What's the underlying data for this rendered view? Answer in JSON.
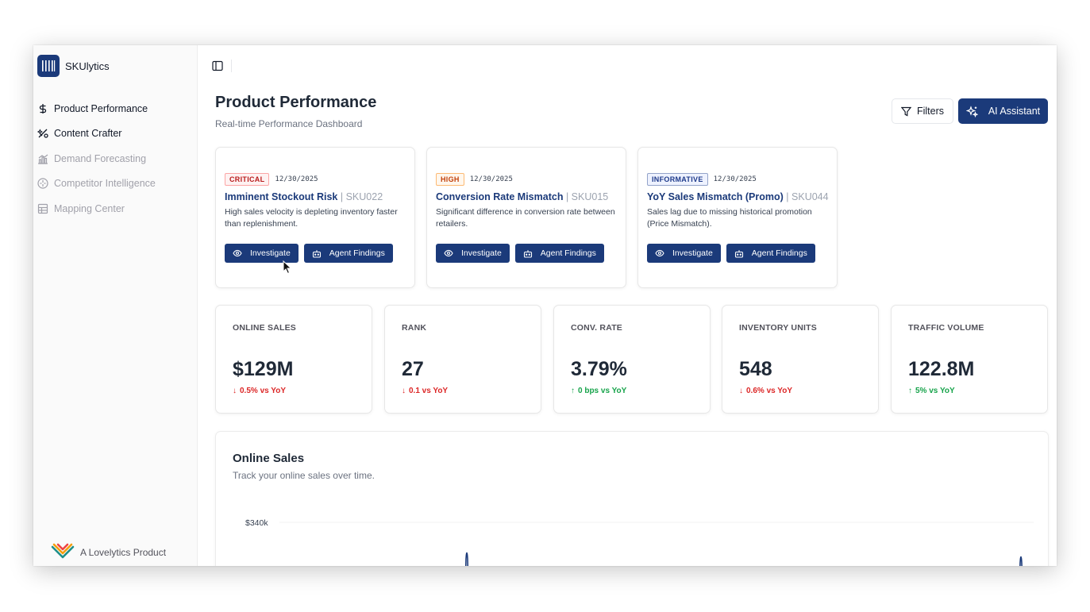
{
  "brand": {
    "name": "SKUlytics"
  },
  "sidebar": {
    "items": [
      {
        "label": "Product Performance",
        "icon": "dollar-icon",
        "state": "active"
      },
      {
        "label": "Content Crafter",
        "icon": "wand-icon",
        "state": "active"
      },
      {
        "label": "Demand Forecasting",
        "icon": "bar-chart-icon",
        "state": "disabled"
      },
      {
        "label": "Competitor Intelligence",
        "icon": "compass-icon",
        "state": "disabled"
      },
      {
        "label": "Mapping Center",
        "icon": "grid-icon",
        "state": "disabled"
      }
    ],
    "footer": "A Lovelytics Product"
  },
  "header": {
    "title": "Product Performance",
    "subtitle": "Real-time Performance Dashboard",
    "filters_label": "Filters",
    "ai_label": "AI Assistant"
  },
  "alerts": [
    {
      "severity": "CRITICAL",
      "date": "12/30/2025",
      "title": "Imminent Stockout Risk",
      "sku": "| SKU022",
      "description": "High sales velocity is depleting inventory faster than replenishment.",
      "investigate_label": "Investigate",
      "findings_label": "Agent Findings"
    },
    {
      "severity": "HIGH",
      "date": "12/30/2025",
      "title": "Conversion Rate Mismatch",
      "sku": "| SKU015",
      "description": "Significant difference in conversion rate between retailers.",
      "investigate_label": "Investigate",
      "findings_label": "Agent Findings"
    },
    {
      "severity": "INFORMATIVE",
      "date": "12/30/2025",
      "title": "YoY Sales Mismatch (Promo)",
      "sku": "| SKU044",
      "description": "Sales lag due to missing historical promotion (Price Mismatch).",
      "investigate_label": "Investigate",
      "findings_label": "Agent Findings"
    }
  ],
  "kpis": [
    {
      "label": "ONLINE SALES",
      "value": "$129M",
      "arrow": "↓",
      "delta": "0.5% vs YoY",
      "trend": "down"
    },
    {
      "label": "RANK",
      "value": "27",
      "arrow": "↓",
      "delta": "0.1 vs YoY",
      "trend": "down"
    },
    {
      "label": "CONV. RATE",
      "value": "3.79%",
      "arrow": "↑",
      "delta": "0 bps vs YoY",
      "trend": "up"
    },
    {
      "label": "INVENTORY UNITS",
      "value": "548",
      "arrow": "↓",
      "delta": "0.6% vs YoY",
      "trend": "down"
    },
    {
      "label": "TRAFFIC VOLUME",
      "value": "122.8M",
      "arrow": "↑",
      "delta": "5% vs YoY",
      "trend": "up"
    }
  ],
  "chart": {
    "title": "Online Sales",
    "subtitle": "Track your online sales over time.",
    "color": "#1b3a7a"
  },
  "chart_data": {
    "type": "line",
    "y_tick_labels": [
      "$340k"
    ],
    "series": [
      {
        "values": [
          null,
          "spike",
          null,
          "spike"
        ]
      }
    ]
  },
  "colors": {
    "accent": "#1b3a7a",
    "critical": "#b91c1c",
    "high": "#c2410c",
    "down": "#dc2626",
    "up": "#16a34a"
  }
}
